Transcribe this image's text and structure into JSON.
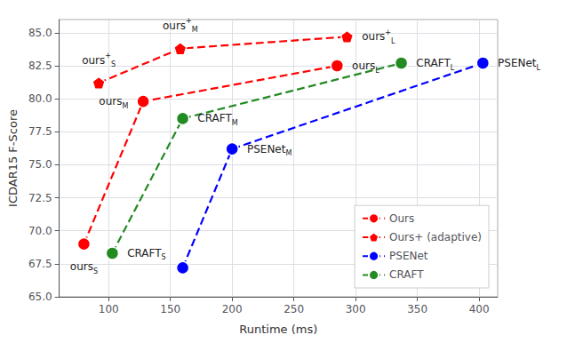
{
  "chart_data": {
    "type": "line",
    "x_label": "Runtime (ms)",
    "y_label": "ICDAR15 F-Score",
    "xlim": [
      60,
      415
    ],
    "ylim": [
      65,
      86
    ],
    "xticks": [
      100,
      150,
      200,
      250,
      300,
      350,
      400
    ],
    "yticks": [
      {
        "value": 65,
        "label": "65.0"
      },
      67.5,
      {
        "value": 70,
        "label": "70.0"
      },
      72.5,
      {
        "value": 75,
        "label": "75.0"
      },
      77.5,
      {
        "value": 80,
        "label": "80.0"
      },
      82.5,
      {
        "value": 85,
        "label": "85.0"
      }
    ],
    "grid": true,
    "legend": "lower right",
    "line_style": "dashed",
    "series": [
      {
        "name": "Ours",
        "color": "#ff0000",
        "marker": "circle",
        "x": [
          80,
          128,
          285
        ],
        "values": [
          69.0,
          79.8,
          82.5
        ],
        "labels": [
          {
            "text": "ours",
            "sub": "S"
          },
          {
            "text": "ours",
            "sub": "M"
          },
          {
            "text": "ours",
            "sub": "L"
          }
        ]
      },
      {
        "name": "Ours+ (adaptive)",
        "color": "#ff0000",
        "marker": "pentagon",
        "x": [
          92,
          158,
          293
        ],
        "values": [
          81.2,
          83.8,
          84.7
        ],
        "labels": [
          {
            "text": "ours",
            "sup": "+",
            "sub": "S"
          },
          {
            "text": "ours",
            "sup": "+",
            "sub": "M"
          },
          {
            "text": "ours",
            "sup": "+",
            "sub": "L"
          }
        ]
      },
      {
        "name": "PSENet",
        "color": "#0000ff",
        "marker": "circle",
        "x": [
          160,
          200,
          403
        ],
        "values": [
          67.2,
          76.2,
          82.7
        ],
        "labels": [
          null,
          {
            "text": "PSENet",
            "sub": "M"
          },
          {
            "text": "PSENet",
            "sub": "L"
          }
        ]
      },
      {
        "name": "CRAFT",
        "color": "#228B22",
        "marker": "circle",
        "x": [
          103,
          160,
          337
        ],
        "values": [
          68.3,
          78.5,
          82.7
        ],
        "labels": [
          {
            "text": "CRAFT",
            "sub": "S"
          },
          {
            "text": "CRAFT",
            "sub": "M"
          },
          {
            "text": "CRAFT",
            "sub": "L"
          }
        ]
      }
    ]
  }
}
